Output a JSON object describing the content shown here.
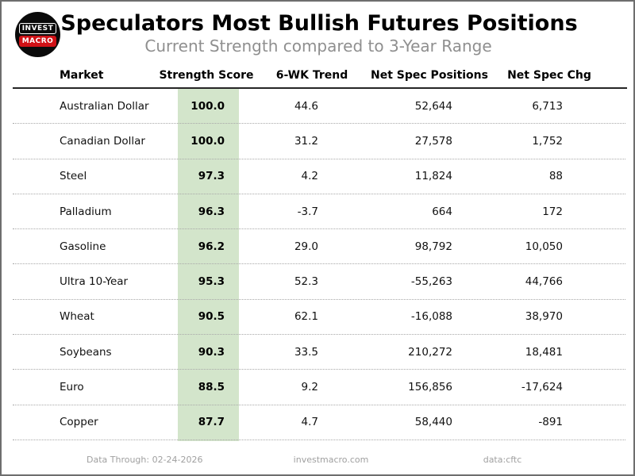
{
  "header": {
    "title": "Speculators Most Bullish Futures Positions",
    "subtitle": "Current Strength compared to 3-Year Range",
    "logo_line1": "INVEST",
    "logo_line2": "MACRO"
  },
  "table": {
    "columns": [
      "Market",
      "Strength Score",
      "6-WK Trend",
      "Net Spec Positions",
      "Net Spec Chg"
    ],
    "rows": [
      {
        "market": "Australian Dollar",
        "score": "100.0",
        "trend": "44.6",
        "positions": "52,644",
        "change": "6,713"
      },
      {
        "market": "Canadian Dollar",
        "score": "100.0",
        "trend": "31.2",
        "positions": "27,578",
        "change": "1,752"
      },
      {
        "market": "Steel",
        "score": "97.3",
        "trend": "4.2",
        "positions": "11,824",
        "change": "88"
      },
      {
        "market": "Palladium",
        "score": "96.3",
        "trend": "-3.7",
        "positions": "664",
        "change": "172"
      },
      {
        "market": "Gasoline",
        "score": "96.2",
        "trend": "29.0",
        "positions": "98,792",
        "change": "10,050"
      },
      {
        "market": "Ultra 10-Year",
        "score": "95.3",
        "trend": "52.3",
        "positions": "-55,263",
        "change": "44,766"
      },
      {
        "market": "Wheat",
        "score": "90.5",
        "trend": "62.1",
        "positions": "-16,088",
        "change": "38,970"
      },
      {
        "market": "Soybeans",
        "score": "90.3",
        "trend": "33.5",
        "positions": "210,272",
        "change": "18,481"
      },
      {
        "market": "Euro",
        "score": "88.5",
        "trend": "9.2",
        "positions": "156,856",
        "change": "-17,624"
      },
      {
        "market": "Copper",
        "score": "87.7",
        "trend": "4.7",
        "positions": "58,440",
        "change": "-891"
      }
    ]
  },
  "footer": {
    "data_through": "Data Through: 02-24-2026",
    "website": "investmacro.com",
    "source": "data:cftc"
  },
  "colors": {
    "score_band": "#d3e5cb",
    "logo_red": "#cf1116",
    "title_text": "#000000",
    "subtitle_text": "#8f8f8f",
    "footer_text": "#a0a0a0"
  },
  "chart_data": {
    "type": "table",
    "title": "Speculators Most Bullish Futures Positions",
    "subtitle": "Current Strength compared to 3-Year Range",
    "columns": [
      "Market",
      "Strength Score",
      "6-WK Trend",
      "Net Spec Positions",
      "Net Spec Chg"
    ],
    "rows": [
      [
        "Australian Dollar",
        100.0,
        44.6,
        52644,
        6713
      ],
      [
        "Canadian Dollar",
        100.0,
        31.2,
        27578,
        1752
      ],
      [
        "Steel",
        97.3,
        4.2,
        11824,
        88
      ],
      [
        "Palladium",
        96.3,
        -3.7,
        664,
        172
      ],
      [
        "Gasoline",
        96.2,
        29.0,
        98792,
        10050
      ],
      [
        "Ultra 10-Year",
        95.3,
        52.3,
        -55263,
        44766
      ],
      [
        "Wheat",
        90.5,
        62.1,
        -16088,
        38970
      ],
      [
        "Soybeans",
        90.3,
        33.5,
        210272,
        18481
      ],
      [
        "Euro",
        88.5,
        9.2,
        156856,
        -17624
      ],
      [
        "Copper",
        87.7,
        4.7,
        58440,
        -891
      ]
    ],
    "notes": {
      "highlighted_column": "Strength Score",
      "highlight_color": "#d3e5cb",
      "legend_position": "none",
      "grid": "dotted row separators"
    }
  }
}
